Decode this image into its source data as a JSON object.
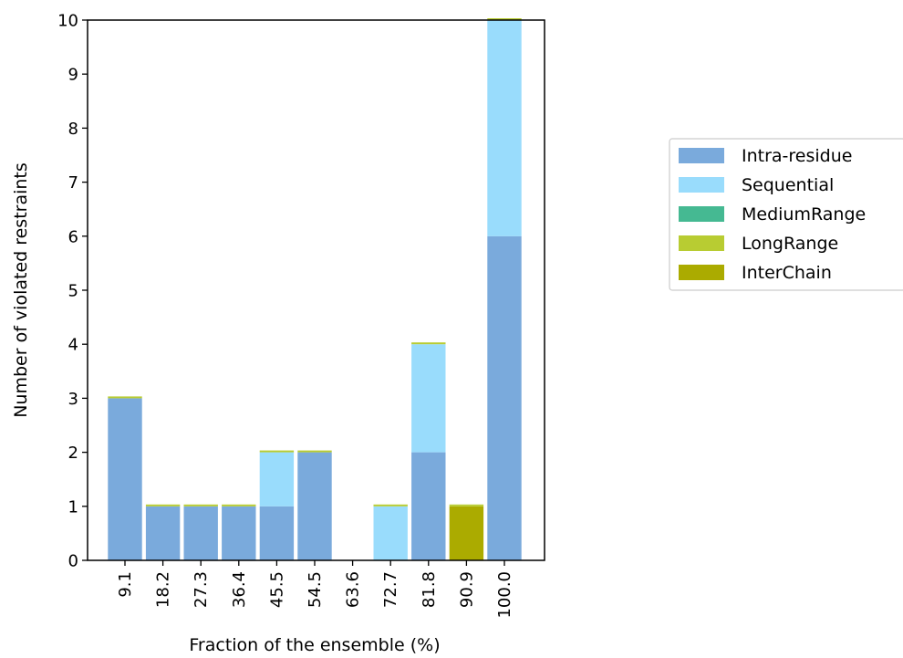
{
  "chart_data": {
    "type": "bar",
    "stacked": true,
    "xlabel": "Fraction of the ensemble (%)",
    "ylabel": "Number of violated restraints",
    "ylim": [
      0,
      10
    ],
    "yticks": [
      "0",
      "1",
      "2",
      "3",
      "4",
      "5",
      "6",
      "7",
      "8",
      "9",
      "10"
    ],
    "categories": [
      "9.1",
      "18.2",
      "27.3",
      "36.4",
      "45.5",
      "54.5",
      "63.6",
      "72.7",
      "81.8",
      "90.9",
      "100.0"
    ],
    "grid": false,
    "legend_position": "right",
    "series": [
      {
        "name": "Intra-residue",
        "color": "#7aaadc",
        "values": [
          3,
          1,
          1,
          1,
          1,
          2,
          0,
          0,
          2,
          0,
          6
        ]
      },
      {
        "name": "Sequential",
        "color": "#99dcfc",
        "values": [
          0,
          0,
          0,
          0,
          1,
          0,
          0,
          1,
          2,
          0,
          4
        ]
      },
      {
        "name": "MediumRange",
        "color": "#45b992",
        "values": [
          0,
          0,
          0,
          0,
          0,
          0,
          0,
          0,
          0,
          0,
          0
        ]
      },
      {
        "name": "LongRange",
        "color": "#b8cc32",
        "values": [
          0,
          0,
          0,
          0,
          0,
          0,
          0,
          0,
          0,
          0,
          0
        ]
      },
      {
        "name": "InterChain",
        "color": "#abab00",
        "values": [
          0,
          0,
          0,
          0,
          0,
          0,
          0,
          0,
          0,
          1,
          0
        ]
      }
    ]
  }
}
